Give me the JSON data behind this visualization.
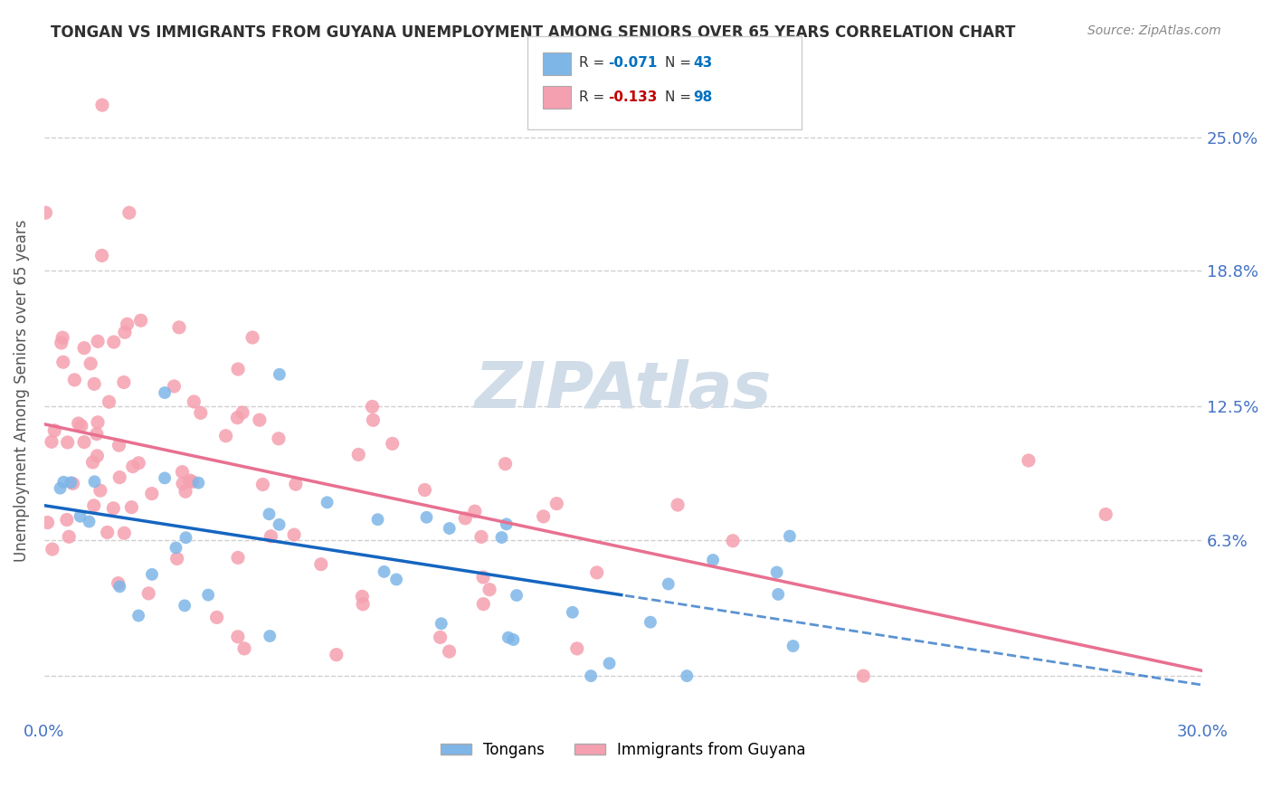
{
  "title": "TONGAN VS IMMIGRANTS FROM GUYANA UNEMPLOYMENT AMONG SENIORS OVER 65 YEARS CORRELATION CHART",
  "source": "Source: ZipAtlas.com",
  "ylabel": "Unemployment Among Seniors over 65 years",
  "xlim": [
    0.0,
    0.3
  ],
  "ylim": [
    -0.02,
    0.285
  ],
  "ytick_pos": [
    0.0,
    0.063,
    0.125,
    0.188,
    0.25
  ],
  "ytick_labels": [
    "",
    "6.3%",
    "12.5%",
    "18.8%",
    "25.0%"
  ],
  "xtick_positions": [
    0.0,
    0.05,
    0.1,
    0.15,
    0.2,
    0.25,
    0.3
  ],
  "xtick_labels": [
    "0.0%",
    "",
    "",
    "",
    "",
    "",
    "30.0%"
  ],
  "series1_name": "Tongans",
  "series1_color": "#7EB6E8",
  "series1_line_color": "#1565C0",
  "series1_R": -0.071,
  "series1_N": 43,
  "series2_name": "Immigrants from Guyana",
  "series2_color": "#F5A0B0",
  "series2_line_color": "#E87090",
  "series2_R": -0.133,
  "series2_N": 98,
  "background_color": "#ffffff",
  "grid_color": "#d0d0d0",
  "watermark_color": "#d0dce8",
  "title_color": "#303030",
  "axis_label_color": "#555555",
  "tick_label_color": "#4472c4",
  "legend_R_color1": "#0070c0",
  "legend_R_color2": "#c00000",
  "legend_N_color": "#0070c0"
}
